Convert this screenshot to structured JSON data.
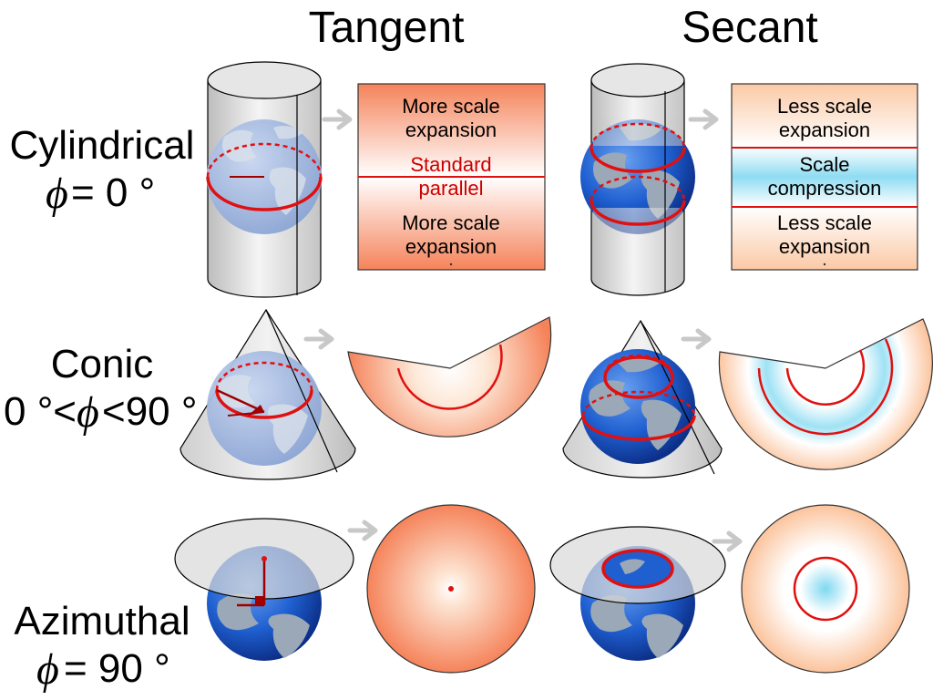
{
  "headers": {
    "tangent": "Tangent",
    "secant": "Secant"
  },
  "rows": {
    "cylindrical": {
      "name": "Cylindrical",
      "phi": "ϕ",
      "condition": "= 0 °"
    },
    "conic": {
      "name": "Conic",
      "condition_left": "0 °<",
      "phi": "ϕ",
      "condition_right": "<90 °"
    },
    "azimuthal": {
      "name": "Azimuthal",
      "phi": "ϕ",
      "condition": "= 90 °"
    }
  },
  "tangent_cylinder_box": {
    "top_line1": "More scale",
    "top_line2": "expansion",
    "mid_line1": "Standard",
    "mid_line2": "parallel",
    "bottom_line1": "More scale",
    "bottom_line2": "expansion"
  },
  "secant_cylinder_box": {
    "top_line1": "Less scale",
    "top_line2": "expansion",
    "mid_line1": "Scale",
    "mid_line2": "compression",
    "bottom_line1": "Less scale",
    "bottom_line2": "expansion"
  },
  "colors": {
    "expansion": "#f5835a",
    "compression": "#7fd8f0",
    "standard_line": "#e01010",
    "ocean": "#1a55c8",
    "land": "#9aa8b8",
    "arrow": "#c8c8c8",
    "surface": "#d8d8d8"
  }
}
